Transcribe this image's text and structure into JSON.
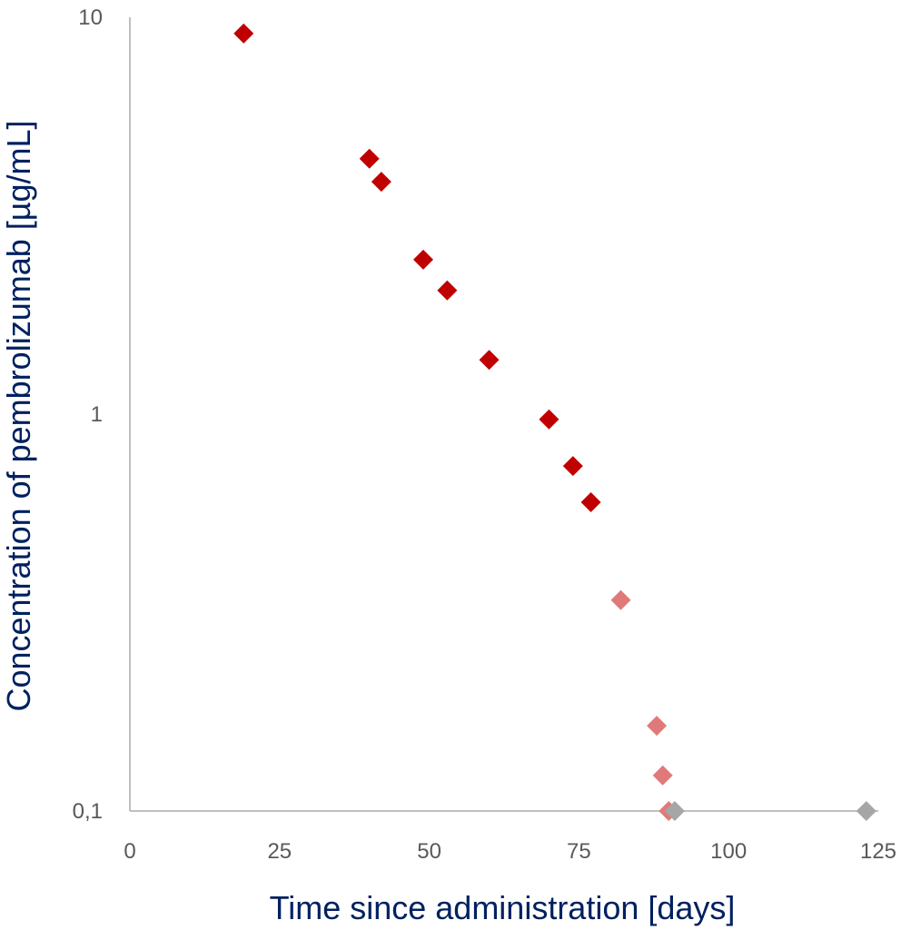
{
  "chart_data": {
    "type": "scatter",
    "title": "",
    "xlabel": "Time since administration [days]",
    "ylabel": "Concentration of pembrolizumab [µg/mL]",
    "xlim": [
      0,
      125
    ],
    "ylim": [
      0.1,
      10
    ],
    "y_scale": "log",
    "grid": false,
    "legend": "none",
    "x_ticks": [
      {
        "value": 0,
        "label": "0"
      },
      {
        "value": 25,
        "label": "25"
      },
      {
        "value": 50,
        "label": "50"
      },
      {
        "value": 75,
        "label": "75"
      },
      {
        "value": 100,
        "label": "100"
      },
      {
        "value": 125,
        "label": "125"
      }
    ],
    "y_ticks": [
      {
        "value": 10,
        "label": "10"
      },
      {
        "value": 1,
        "label": "1"
      },
      {
        "value": 0.1,
        "label": "0,1"
      }
    ],
    "series": [
      {
        "color": "#c00000",
        "marker": "diamond",
        "points": [
          [
            19,
            9.1
          ],
          [
            40,
            4.4
          ],
          [
            42,
            3.85
          ],
          [
            49,
            2.45
          ],
          [
            53,
            2.05
          ],
          [
            60,
            1.37
          ],
          [
            70,
            0.97
          ],
          [
            74,
            0.74
          ],
          [
            77,
            0.6
          ]
        ]
      },
      {
        "color": "#e07a7a",
        "marker": "diamond",
        "points": [
          [
            82,
            0.34
          ],
          [
            88,
            0.164
          ],
          [
            89,
            0.123
          ],
          [
            90,
            0.1
          ]
        ]
      },
      {
        "color": "#a6a6a6",
        "marker": "diamond",
        "points": [
          [
            91,
            0.1
          ],
          [
            123,
            0.1
          ]
        ]
      }
    ]
  },
  "colors": {
    "axis_line": "#bfbfbf",
    "tick_text": "#595959",
    "title_text": "#002060"
  }
}
